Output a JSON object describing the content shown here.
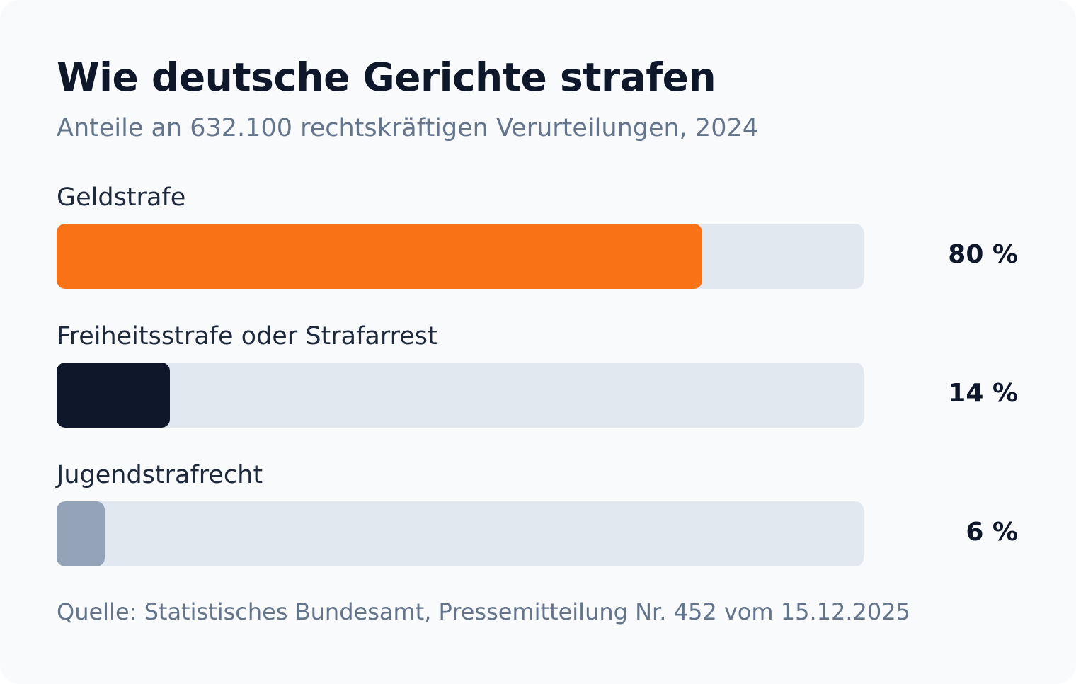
{
  "chart_data": {
    "type": "bar",
    "orientation": "horizontal",
    "title": "Wie deutsche Gerichte strafen",
    "subtitle": "Anteile an 632.100 rechtskräftigen Verurteilungen, 2024",
    "categories": [
      "Geldstrafe",
      "Freiheitsstrafe oder Strafarrest",
      "Jugendstrafrecht"
    ],
    "values": [
      80,
      14,
      6
    ],
    "value_labels": [
      "80 %",
      "14 %",
      "6 %"
    ],
    "colors": [
      "#f97316",
      "#0f172a",
      "#94a3b8"
    ],
    "track_color": "#e2e8f0",
    "xlim": [
      0,
      100
    ],
    "grid": false,
    "source": "Quelle: Statistisches Bundesamt, Pressemitteilung Nr. 452 vom 15.12.2025"
  }
}
